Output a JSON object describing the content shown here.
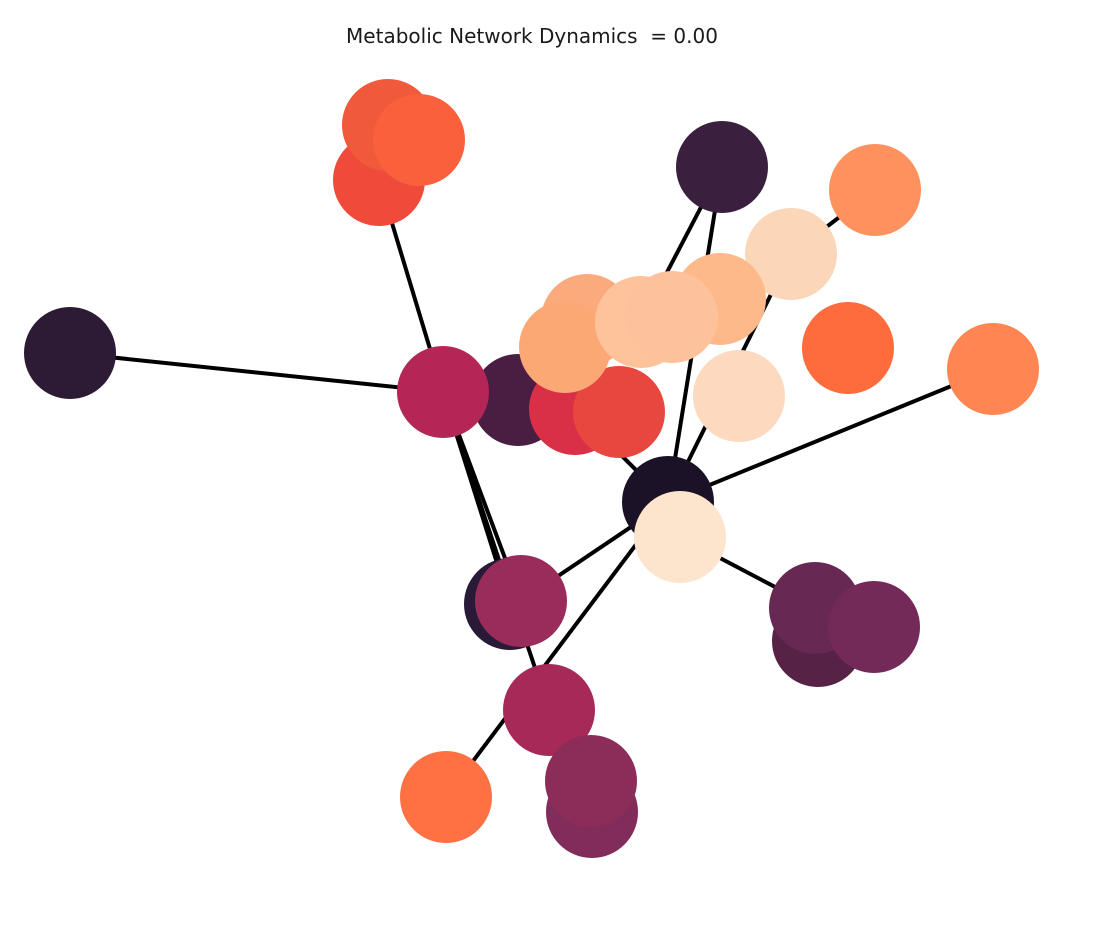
{
  "title": "Metabolic Network Dynamics  = 0.00",
  "edge_color": "#000000",
  "nodes": [
    {
      "id": "n1",
      "color": "#f05a3a"
    },
    {
      "id": "n2",
      "color": "#f04a3a"
    },
    {
      "id": "n3",
      "color": "#fb603c"
    },
    {
      "id": "n4",
      "color": "#3a1f3f"
    },
    {
      "id": "n5",
      "color": "#fe925e"
    },
    {
      "id": "n6",
      "color": "#2d1a34"
    },
    {
      "id": "n7",
      "color": "#b32655"
    },
    {
      "id": "n8",
      "color": "#4a1d42"
    },
    {
      "id": "n9",
      "color": "#fcd6b8"
    },
    {
      "id": "n10",
      "color": "#fe6b3c"
    },
    {
      "id": "n11",
      "color": "#ff8552"
    },
    {
      "id": "n12",
      "color": "#feb98b"
    },
    {
      "id": "n13",
      "color": "#fbaa7d"
    },
    {
      "id": "n14",
      "color": "#fec39b"
    },
    {
      "id": "n15",
      "color": "#d92f47"
    },
    {
      "id": "n16",
      "color": "#e8473f"
    },
    {
      "id": "n17",
      "color": "#fca875"
    },
    {
      "id": "n18",
      "color": "#fdc29c"
    },
    {
      "id": "n19",
      "color": "#fcd9bf"
    },
    {
      "id": "n20",
      "color": "#1b1228"
    },
    {
      "id": "n21",
      "color": "#fde4cc"
    },
    {
      "id": "n22",
      "color": "#291b37"
    },
    {
      "id": "n23",
      "color": "#992c5a"
    },
    {
      "id": "n24",
      "color": "#672853"
    },
    {
      "id": "n25",
      "color": "#562246"
    },
    {
      "id": "n26",
      "color": "#732a58"
    },
    {
      "id": "n27",
      "color": "#a72957"
    },
    {
      "id": "n28",
      "color": "#ff7043"
    },
    {
      "id": "n29",
      "color": "#812c5a"
    },
    {
      "id": "n30",
      "color": "#8c2c58"
    }
  ],
  "edges": [
    [
      "n2",
      "n7"
    ],
    [
      "n6",
      "n7"
    ],
    [
      "n7",
      "n22"
    ],
    [
      "n7",
      "n23"
    ],
    [
      "n7",
      "n27"
    ],
    [
      "n4",
      "n14"
    ],
    [
      "n4",
      "n20"
    ],
    [
      "n5",
      "n9"
    ],
    [
      "n9",
      "n20"
    ],
    [
      "n11",
      "n20"
    ],
    [
      "n15",
      "n20"
    ],
    [
      "n20",
      "n23"
    ],
    [
      "n20",
      "n28"
    ],
    [
      "n21",
      "n24"
    ],
    [
      "n8",
      "n15"
    ],
    [
      "n13",
      "n14"
    ]
  ]
}
